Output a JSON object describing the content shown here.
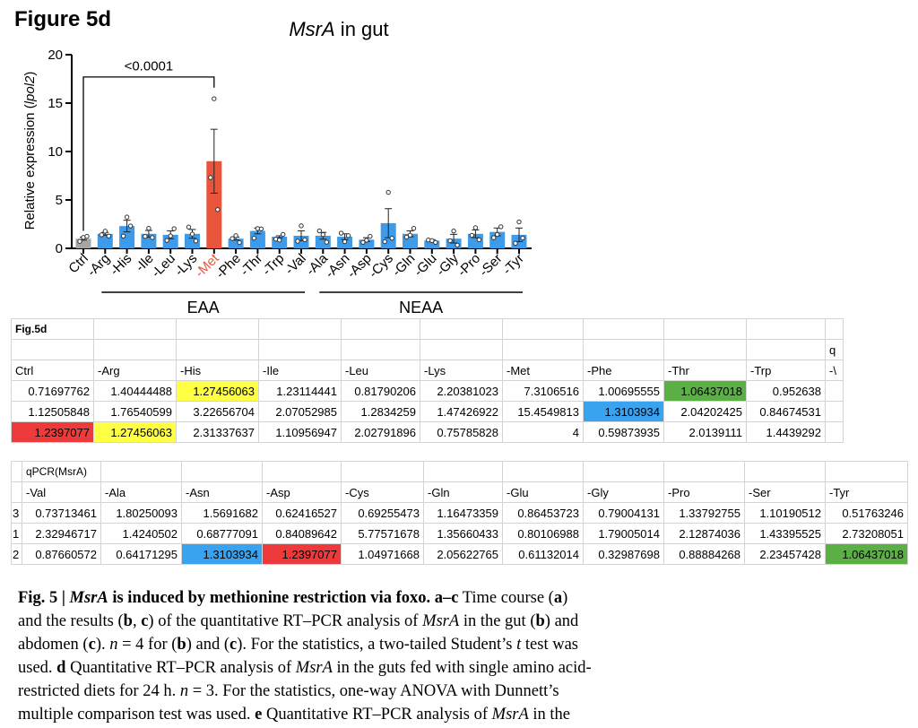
{
  "figure_label": "Figure 5d",
  "chart_data": {
    "type": "bar",
    "title_italic": "MsrA",
    "title_rest": " in gut",
    "ylabel_prefix": "Relative expression (",
    "ylabel_italic": "lpol2",
    "ylabel_suffix": ")",
    "ylim": [
      0,
      20
    ],
    "yticks": [
      0,
      5,
      10,
      15,
      20
    ],
    "categories": [
      "Ctrl",
      "-Arg",
      "-His",
      "-Ile",
      "-Leu",
      "-Lys",
      "-Met",
      "-Phe",
      "-Thr",
      "-Trp",
      "-Val",
      "-Ala",
      "-Asn",
      "-Asp",
      "-Cys",
      "-Gln",
      "-Glu",
      "-Gly",
      "-Pro",
      "-Ser",
      "-Tyr"
    ],
    "values": [
      1.0,
      1.5,
      2.3,
      1.5,
      1.4,
      1.5,
      9.0,
      1.0,
      1.8,
      1.2,
      1.3,
      1.3,
      1.2,
      0.9,
      2.6,
      1.5,
      0.8,
      1.0,
      1.5,
      1.7,
      1.4
    ],
    "errors": [
      0.15,
      0.15,
      0.6,
      0.35,
      0.4,
      0.45,
      3.3,
      0.15,
      0.3,
      0.1,
      0.5,
      0.35,
      0.3,
      0.2,
      1.5,
      0.3,
      0.1,
      0.45,
      0.4,
      0.4,
      0.7
    ],
    "points": [
      [
        0.72,
        1.13,
        1.24
      ],
      [
        1.4,
        1.77,
        1.27
      ],
      [
        1.27,
        3.23,
        2.31
      ],
      [
        1.23,
        2.07,
        1.11
      ],
      [
        0.82,
        1.28,
        2.03
      ],
      [
        2.2,
        1.47,
        0.76
      ],
      [
        7.31,
        15.45,
        4.0
      ],
      [
        1.01,
        1.31,
        0.6
      ],
      [
        1.06,
        2.04,
        2.01
      ],
      [
        0.95,
        0.85,
        1.44
      ],
      [
        0.74,
        2.33,
        0.88
      ],
      [
        1.8,
        1.42,
        0.64
      ],
      [
        1.57,
        0.69,
        1.31
      ],
      [
        0.62,
        0.84,
        1.24
      ],
      [
        0.69,
        5.78,
        1.05
      ],
      [
        1.16,
        1.36,
        2.06
      ],
      [
        0.86,
        0.8,
        0.61
      ],
      [
        0.79,
        1.79,
        0.33
      ],
      [
        1.34,
        2.13,
        0.89
      ],
      [
        1.1,
        1.43,
        2.23
      ],
      [
        0.52,
        2.73,
        1.06
      ]
    ],
    "colors": {
      "ctrl": "#a6a6a6",
      "default": "#3d9be9",
      "highlight": "#e8553b"
    },
    "highlight_category": "-Met",
    "significance_label": "<0.0001",
    "groups": [
      {
        "label": "EAA",
        "from": "-Arg",
        "to": "-Val"
      },
      {
        "label": "NEAA",
        "from": "-Ala",
        "to": "-Tyr"
      }
    ]
  },
  "sheet1": {
    "title": "Fig.5d",
    "corner_char": "q",
    "headers": [
      "Ctrl",
      "-Arg",
      "-His",
      "-Ile",
      "-Leu",
      "-Lys",
      "-Met",
      "-Phe",
      "-Thr",
      "-Trp",
      "-\\"
    ],
    "rows": [
      [
        "0.71697762",
        "1.40444488",
        "1.27456063",
        "1.23114441",
        "0.81790206",
        "2.20381023",
        "7.3106516",
        "1.00695555",
        "1.06437018",
        "0.952638",
        ""
      ],
      [
        "1.12505848",
        "1.76540599",
        "3.22656704",
        "2.07052985",
        "1.2834259",
        "1.47426922",
        "15.4549813",
        "1.3103934",
        "2.04202425",
        "0.84674531",
        ""
      ],
      [
        "1.2397077",
        "1.27456063",
        "2.31337637",
        "1.10956947",
        "2.02791896",
        "0.75785828",
        "4",
        "0.59873935",
        "2.0139111",
        "1.4439292",
        ""
      ]
    ],
    "highlights": [
      {
        "row": 0,
        "col": 2,
        "color": "#ffff44"
      },
      {
        "row": 0,
        "col": 8,
        "color": "#5bb045"
      },
      {
        "row": 1,
        "col": 7,
        "color": "#3aa3ef"
      },
      {
        "row": 2,
        "col": 0,
        "color": "#ee3a3a"
      },
      {
        "row": 2,
        "col": 1,
        "color": "#ffff44"
      }
    ]
  },
  "sheet2": {
    "title": "qPCR(MsrA)",
    "row_stubs": [
      "3",
      "1",
      "2"
    ],
    "headers": [
      "-Val",
      "-Ala",
      "-Asn",
      "-Asp",
      "-Cys",
      "-Gln",
      "-Glu",
      "-Gly",
      "-Pro",
      "-Ser",
      "-Tyr"
    ],
    "rows": [
      [
        "0.73713461",
        "1.80250093",
        "1.5691682",
        "0.62416527",
        "0.69255473",
        "1.16473359",
        "0.86453723",
        "0.79004131",
        "1.33792755",
        "1.10190512",
        "0.51763246"
      ],
      [
        "2.32946717",
        "1.4240502",
        "0.68777091",
        "0.84089642",
        "5.77571678",
        "1.35660433",
        "0.80106988",
        "1.79005014",
        "2.12874036",
        "1.43395525",
        "2.73208051"
      ],
      [
        "0.87660572",
        "0.64171295",
        "1.3103934",
        "1.2397077",
        "1.04971668",
        "2.05622765",
        "0.61132014",
        "0.32987698",
        "0.88884268",
        "2.23457428",
        "1.06437018"
      ]
    ],
    "highlights": [
      {
        "row": 2,
        "col": 2,
        "color": "#3aa3ef"
      },
      {
        "row": 2,
        "col": 3,
        "color": "#ee3a3a"
      },
      {
        "row": 2,
        "col": 10,
        "color": "#5bb045"
      }
    ]
  },
  "caption": {
    "l1_a": "Fig. 5 | ",
    "l1_b": "MsrA",
    "l1_c": " is induced by methionine restriction via foxo. a–c",
    "l1_d": " Time course (",
    "l1_e": "a",
    "l1_f": ")",
    "l2_a": "and the results (",
    "l2_b": "b",
    "l2_c": ", ",
    "l2_d": "c",
    "l2_e": ") of the quantitative RT–PCR analysis of ",
    "l2_f": "MsrA",
    "l2_g": " in the gut (",
    "l2_h": "b",
    "l2_i": ") and",
    "l3_a": "abdomen (",
    "l3_b": "c",
    "l3_c": "). ",
    "l3_d": "n",
    "l3_e": " = 4 for (",
    "l3_f": "b",
    "l3_g": ") and (",
    "l3_h": "c",
    "l3_i": "). For the statistics, a two-tailed Student’s ",
    "l3_j": "t",
    "l3_k": " test was",
    "l4_a": "used. ",
    "l4_b": "d",
    "l4_c": " Quantitative RT–PCR analysis of ",
    "l4_d": "MsrA",
    "l4_e": " in the guts fed with single amino acid-",
    "l5_a": "restricted diets for 24 h. ",
    "l5_b": "n",
    "l5_c": " = 3. For the statistics, one-way ANOVA with Dunnett’s",
    "l6_a": "multiple comparison test was used. ",
    "l6_b": "e",
    "l6_c": " Quantitative RT–PCR analysis of ",
    "l6_d": "MsrA",
    "l6_e": " in the"
  }
}
